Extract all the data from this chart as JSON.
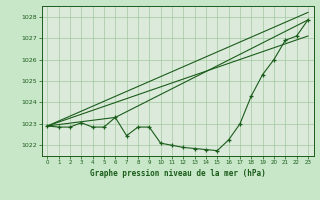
{
  "title": "Graphe pression niveau de la mer (hPa)",
  "background_color": "#c8e6c8",
  "plot_bg_color": "#dceadc",
  "grid_color": "#a0c8a0",
  "line_color": "#1a5c1a",
  "xlim": [
    -0.5,
    23.5
  ],
  "ylim": [
    1021.5,
    1028.5
  ],
  "yticks": [
    1022,
    1023,
    1024,
    1025,
    1026,
    1027,
    1028
  ],
  "xticks": [
    0,
    1,
    2,
    3,
    4,
    5,
    6,
    7,
    8,
    9,
    10,
    11,
    12,
    13,
    14,
    15,
    16,
    17,
    18,
    19,
    20,
    21,
    22,
    23
  ],
  "data_x": [
    0,
    1,
    2,
    3,
    4,
    5,
    6,
    7,
    8,
    9,
    10,
    11,
    12,
    13,
    14,
    15,
    16,
    17,
    18,
    19,
    20,
    21,
    22,
    23
  ],
  "data_y": [
    1022.9,
    1022.85,
    1022.85,
    1023.05,
    1022.85,
    1022.85,
    1023.3,
    1022.45,
    1022.85,
    1022.85,
    1022.1,
    1022.0,
    1021.9,
    1021.85,
    1021.8,
    1021.75,
    1022.25,
    1023.0,
    1024.3,
    1025.3,
    1026.0,
    1026.9,
    1027.1,
    1027.85
  ],
  "line1_x": [
    0,
    23
  ],
  "line1_y": [
    1022.9,
    1028.2
  ],
  "line2_x": [
    0,
    6,
    23
  ],
  "line2_y": [
    1022.9,
    1023.3,
    1027.85
  ],
  "line3_x": [
    0,
    23
  ],
  "line3_y": [
    1022.9,
    1027.1
  ]
}
